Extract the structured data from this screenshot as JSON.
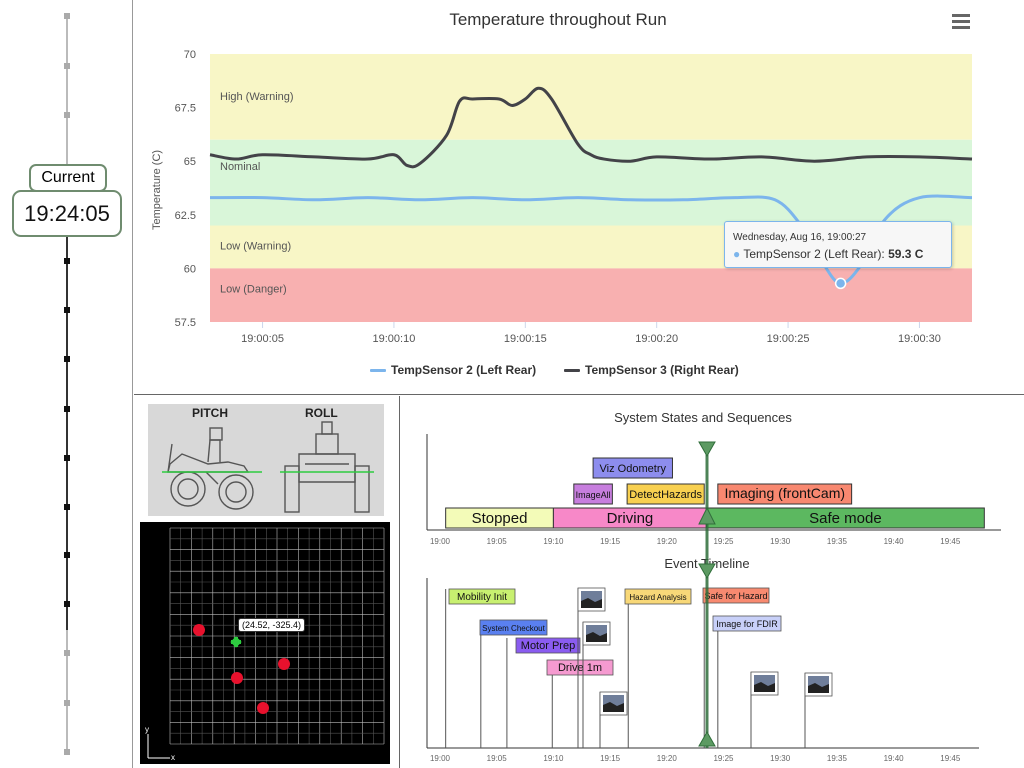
{
  "clock": {
    "label": "Current",
    "time": "19:24:05"
  },
  "temp_chart": {
    "title": "Temperature throughout Run",
    "menu_icon": "hamburger-menu-icon",
    "ylabel": "Temperature (C)",
    "ylim": [
      57.5,
      70
    ],
    "yticks": [
      "70",
      "67.5",
      "65",
      "62.5",
      "60",
      "57.5"
    ],
    "xticks": [
      "19:00:05",
      "19:00:10",
      "19:00:15",
      "19:00:20",
      "19:00:25",
      "19:00:30"
    ],
    "bands": [
      {
        "label": "High (Warning)",
        "from": 66,
        "to": 70,
        "color": "#f8f6c6"
      },
      {
        "label": "Nominal",
        "from": 62,
        "to": 66,
        "color": "#d9f6d9"
      },
      {
        "label": "Low (Warning)",
        "from": 60,
        "to": 62,
        "color": "#f8f6c6"
      },
      {
        "label": "Low (Danger)",
        "from": 57.5,
        "to": 60,
        "color": "#f8b0b0"
      }
    ],
    "tooltip": {
      "date": "Wednesday, Aug 16, 19:00:27",
      "series": "TempSensor 2 (Left Rear): ",
      "value": "59.3 C"
    },
    "legend": [
      {
        "name": "TempSensor 2 (Left Rear)",
        "color": "#7cb5ec"
      },
      {
        "name": "TempSensor 3 (Right Rear)",
        "color": "#434348"
      }
    ]
  },
  "chart_data": {
    "type": "line",
    "title": "Temperature throughout Run",
    "xlabel": "",
    "ylabel": "Temperature (C)",
    "ylim": [
      57.5,
      70
    ],
    "x_range_seconds": [
      "19:00:03",
      "19:00:32"
    ],
    "series": [
      {
        "name": "TempSensor 2 (Left Rear)",
        "color": "#7cb5ec",
        "x": [
          3,
          5,
          7,
          9,
          11,
          13,
          15,
          17,
          19,
          21,
          23,
          24.5,
          25.5,
          26.3,
          27,
          27.8,
          28.7,
          30,
          32
        ],
        "y": [
          63.3,
          63.3,
          63.2,
          63.3,
          63.2,
          63.3,
          63.2,
          63.3,
          63.2,
          63.2,
          63.3,
          63.2,
          62.0,
          60.3,
          59.3,
          60.2,
          62.3,
          63.3,
          63.3
        ]
      },
      {
        "name": "TempSensor 3 (Right Rear)",
        "color": "#434348",
        "x": [
          3,
          4,
          5,
          7,
          9,
          10,
          10.5,
          11,
          12,
          12.5,
          13,
          14,
          14.5,
          15,
          15.5,
          16,
          17,
          17.5,
          18,
          19,
          20,
          22,
          24,
          26,
          28,
          30,
          32
        ],
        "y": [
          65.3,
          65.1,
          65.3,
          65.2,
          65.1,
          65.3,
          64.8,
          64.9,
          66.2,
          67.8,
          67.9,
          67.9,
          67.6,
          67.9,
          68.4,
          67.9,
          65.8,
          65.3,
          65.1,
          65.0,
          65.2,
          65.1,
          65.2,
          65.0,
          65.2,
          65.2,
          65.1
        ]
      }
    ],
    "tooltip_point": {
      "series": "TempSensor 2 (Left Rear)",
      "x": "19:00:27",
      "y": 59.3
    }
  },
  "rover": {
    "pitch_label": "PITCH",
    "roll_label": "ROLL",
    "coord_tooltip": "(24.52, -325.4)",
    "axis_y": "y",
    "axis_x": "x"
  },
  "states": {
    "title": "System States and Sequences",
    "time_ticks": [
      "19:00",
      "19:05",
      "19:10",
      "19:15",
      "19:20",
      "19:25",
      "19:30",
      "19:35",
      "19:40",
      "19:45"
    ],
    "state_bars": [
      {
        "label": "Stopped",
        "color": "#f3fbb8"
      },
      {
        "label": "Driving",
        "color": "#f788c8"
      },
      {
        "label": "Safe mode",
        "color": "#5cb860"
      }
    ],
    "sequences": [
      {
        "label": "Viz Odometry",
        "color": "#8d8dee"
      },
      {
        "label": "ImageAll",
        "color": "#c77ede"
      },
      {
        "label": "DetectHazards",
        "color": "#f8d050"
      },
      {
        "label": "Imaging (frontCam)",
        "color": "#f88870"
      }
    ]
  },
  "events": {
    "title": "Event Timeline",
    "time_ticks": [
      "19:00",
      "19:05",
      "19:10",
      "19:15",
      "19:20",
      "19:25",
      "19:30",
      "19:35",
      "19:40",
      "19:45"
    ],
    "items": [
      {
        "label": "Mobility Init",
        "color": "#c8f070"
      },
      {
        "label": "System Checkout",
        "color": "#5a80f0"
      },
      {
        "label": "Motor Prep",
        "color": "#8a5cf0"
      },
      {
        "label": "Drive 1m",
        "color": "#f59ad0"
      },
      {
        "label": "Hazard Analysis",
        "color": "#f8d878"
      },
      {
        "label": "Safe for Hazard",
        "color": "#f88a70"
      },
      {
        "label": "Image for FDIR",
        "color": "#c8d0f8"
      }
    ]
  }
}
